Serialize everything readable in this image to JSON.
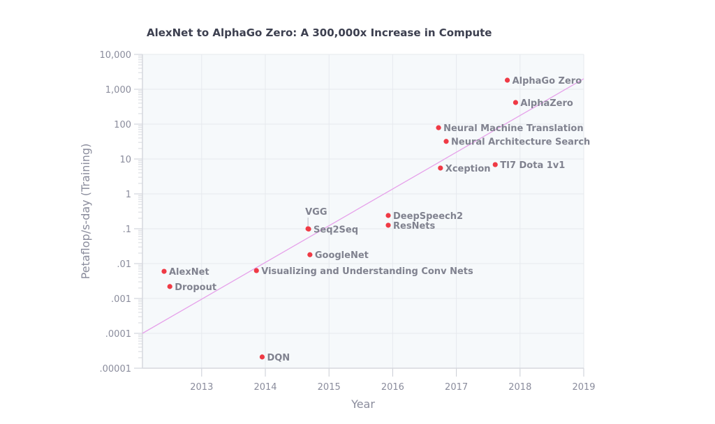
{
  "chart_data": {
    "type": "scatter",
    "title": "AlexNet to AlphaGo Zero: A 300,000x Increase in Compute",
    "xlabel": "Year",
    "ylabel": "Petaflop/s-day (Training)",
    "xlim": [
      2012.07,
      2019
    ],
    "ylim": [
      1e-05,
      10000
    ],
    "yscale": "log",
    "grid": true,
    "xticks": [
      {
        "v": 2013,
        "label": "2013"
      },
      {
        "v": 2014,
        "label": "2014"
      },
      {
        "v": 2015,
        "label": "2015"
      },
      {
        "v": 2016,
        "label": "2016"
      },
      {
        "v": 2017,
        "label": "2017"
      },
      {
        "v": 2018,
        "label": "2018"
      },
      {
        "v": 2019,
        "label": "2019"
      }
    ],
    "yticks": [
      {
        "v": 10000,
        "label": "10,000"
      },
      {
        "v": 1000,
        "label": "1,000"
      },
      {
        "v": 100,
        "label": "100"
      },
      {
        "v": 10,
        "label": "10"
      },
      {
        "v": 1,
        "label": "1"
      },
      {
        "v": 0.1,
        "label": ".1"
      },
      {
        "v": 0.01,
        "label": ".01"
      },
      {
        "v": 0.001,
        "label": ".001"
      },
      {
        "v": 0.0001,
        "label": ".0001"
      },
      {
        "v": 1e-05,
        "label": ".00001"
      }
    ],
    "points": [
      {
        "label": "AlexNet",
        "x": 2012.41,
        "y": 0.006
      },
      {
        "label": "Dropout",
        "x": 2012.5,
        "y": 0.0022
      },
      {
        "label": "Visualizing and Understanding Conv Nets",
        "x": 2013.86,
        "y": 0.0063
      },
      {
        "label": "DQN",
        "x": 2013.95,
        "y": 2.1e-05
      },
      {
        "label": "VGG",
        "x": 2014.67,
        "y": 0.1,
        "label_position": "above"
      },
      {
        "label": "Seq2Seq",
        "x": 2014.68,
        "y": 0.098
      },
      {
        "label": "GoogleNet",
        "x": 2014.7,
        "y": 0.018
      },
      {
        "label": "DeepSpeech2",
        "x": 2015.93,
        "y": 0.24
      },
      {
        "label": "ResNets",
        "x": 2015.93,
        "y": 0.126
      },
      {
        "label": "Neural Machine Translation",
        "x": 2016.72,
        "y": 79
      },
      {
        "label": "Neural Architecture Search",
        "x": 2016.84,
        "y": 32
      },
      {
        "label": "Xception",
        "x": 2016.75,
        "y": 5.5
      },
      {
        "label": "TI7 Dota 1v1",
        "x": 2017.61,
        "y": 6.9
      },
      {
        "label": "AlphaGo Zero",
        "x": 2017.8,
        "y": 1820
      },
      {
        "label": "AlphaZero",
        "x": 2017.93,
        "y": 417
      }
    ],
    "trendline": {
      "x": [
        2012.07,
        2019
      ],
      "y": [
        0.0001,
        2000
      ]
    },
    "colors": {
      "point": "#ef3a45",
      "trend": "#e6a1ea",
      "plot_bg": "#f6f9fb",
      "grid": "#e6e9ee"
    }
  }
}
